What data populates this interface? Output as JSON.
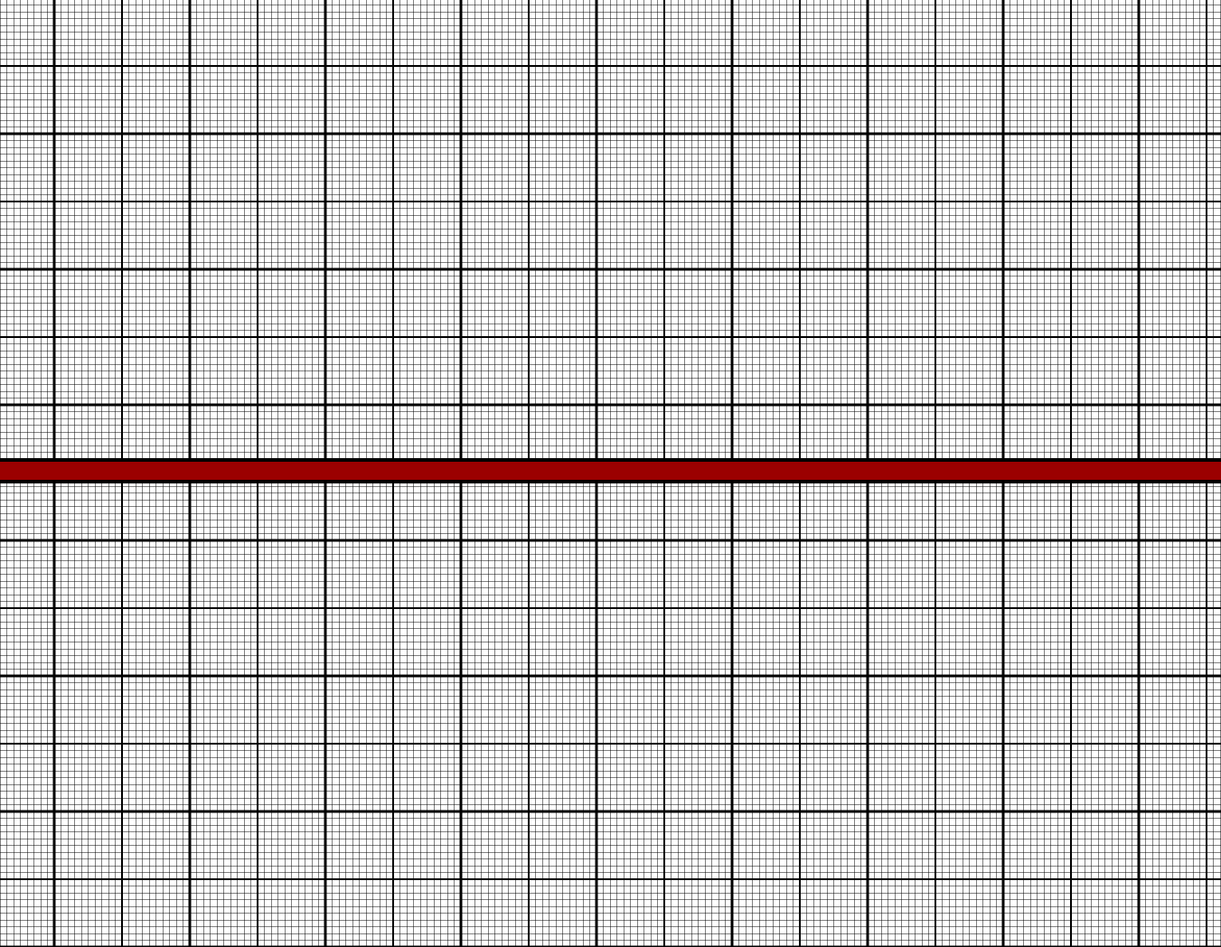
{
  "sheet": {
    "kind": "graph-paper",
    "colors": {
      "background": "#ffffff",
      "fine_line": "#000000",
      "medium_line": "#000000",
      "major_line": "#000000",
      "band": "#9b0000",
      "band_border": "#000000"
    }
  }
}
